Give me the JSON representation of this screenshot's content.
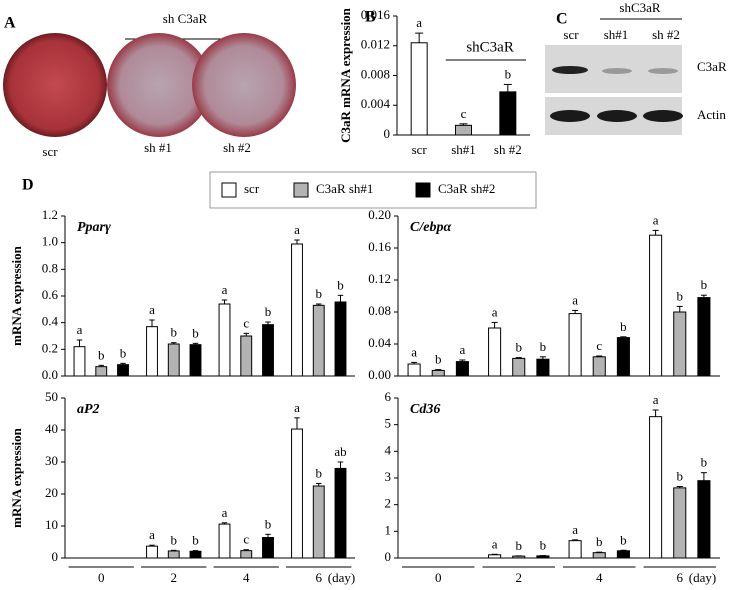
{
  "panel_a": {
    "label": "A",
    "group_label": "sh C3aR",
    "labels": [
      "scr",
      "sh #1",
      "sh #2"
    ]
  },
  "panel_c": {
    "label": "C",
    "group_label": "shC3aR",
    "lanes": [
      "scr",
      "sh#1",
      "sh #2"
    ],
    "bands": [
      "C3aR",
      "Actin"
    ]
  },
  "panel_d": {
    "label": "D",
    "legend": [
      {
        "name": "scr",
        "color": "#ffffff"
      },
      {
        "name": "C3aR sh#1",
        "color": "#b3b3b3"
      },
      {
        "name": "C3aR sh#2",
        "color": "#000000"
      }
    ]
  },
  "chart_data": [
    {
      "type": "bar",
      "panel": "B",
      "ylabel": "C3aR mRNA expression",
      "annotation": "shC3aR",
      "categories": [
        "scr",
        "sh#1",
        "sh #2"
      ],
      "values": [
        0.0124,
        0.0013,
        0.0058
      ],
      "errors": [
        0.0013,
        0.0002,
        0.001
      ],
      "letters": [
        "a",
        "c",
        "b"
      ],
      "colors": [
        "#ffffff",
        "#b3b3b3",
        "#000000"
      ],
      "ylim": [
        0,
        0.016
      ],
      "yticks": [
        0,
        0.004,
        0.008,
        0.012,
        0.016
      ]
    },
    {
      "type": "grouped_bar",
      "title": "Pparγ",
      "ylabel": "mRNA expression",
      "series": [
        {
          "color": "#ffffff",
          "values": [
            0.22,
            0.37,
            0.54,
            0.99
          ],
          "errors": [
            0.05,
            0.05,
            0.03,
            0.03
          ],
          "letters": [
            "a",
            "a",
            "a",
            "a"
          ]
        },
        {
          "color": "#b3b3b3",
          "values": [
            0.07,
            0.24,
            0.3,
            0.53
          ],
          "errors": [
            0.01,
            0.01,
            0.02,
            0.01
          ],
          "letters": [
            "b",
            "b",
            "c",
            "b"
          ]
        },
        {
          "color": "#000000",
          "values": [
            0.085,
            0.235,
            0.385,
            0.555
          ],
          "errors": [
            0.01,
            0.01,
            0.02,
            0.05
          ],
          "letters": [
            "b",
            "b",
            "b",
            "b"
          ]
        }
      ],
      "ylim": [
        0,
        1.2
      ],
      "yticks": [
        {
          "value": 0,
          "label": "0.0"
        },
        0.2,
        0.4,
        0.6,
        0.8,
        {
          "value": 1,
          "label": "1.0"
        },
        1.2
      ]
    },
    {
      "type": "grouped_bar",
      "title": "C/ebpα",
      "series": [
        {
          "color": "#ffffff",
          "values": [
            0.015,
            0.06,
            0.078,
            0.176
          ],
          "errors": [
            0.002,
            0.007,
            0.004,
            0.006
          ],
          "letters": [
            "a",
            "a",
            "a",
            "a"
          ]
        },
        {
          "color": "#b3b3b3",
          "values": [
            0.007,
            0.022,
            0.024,
            0.08
          ],
          "errors": [
            0.001,
            0.001,
            0.001,
            0.007
          ],
          "letters": [
            "b",
            "b",
            "c",
            "b"
          ]
        },
        {
          "color": "#000000",
          "values": [
            0.018,
            0.021,
            0.048,
            0.098
          ],
          "errors": [
            0.002,
            0.003,
            0.001,
            0.003
          ],
          "letters": [
            "a",
            "b",
            "b",
            "b"
          ]
        }
      ],
      "ylim": [
        0,
        0.2
      ],
      "yticks": [
        {
          "value": 0,
          "label": "0.00"
        },
        0.04,
        0.08,
        0.12,
        0.16,
        {
          "value": 0.2,
          "label": "0.20"
        }
      ]
    },
    {
      "type": "grouped_bar",
      "title": "aP2",
      "ylabel": "mRNA expression",
      "categories": [
        "0",
        "2",
        "4",
        "6"
      ],
      "xlabel": "(day)",
      "series": [
        {
          "color": "#ffffff",
          "values": [
            0,
            3.7,
            10.6,
            40.3
          ],
          "errors": [
            0,
            0.3,
            0.4,
            3.5
          ],
          "letters": [
            null,
            "a",
            "a",
            "a"
          ]
        },
        {
          "color": "#b3b3b3",
          "values": [
            0,
            2.2,
            2.3,
            22.5
          ],
          "errors": [
            0,
            0.2,
            0.3,
            0.8
          ],
          "letters": [
            null,
            "b",
            "c",
            "b"
          ]
        },
        {
          "color": "#000000",
          "values": [
            0,
            2.1,
            6.4,
            28
          ],
          "errors": [
            0,
            0.2,
            1,
            2
          ],
          "letters": [
            null,
            "b",
            "b",
            "ab"
          ]
        }
      ],
      "ylim": [
        0,
        50
      ],
      "yticks": [
        0,
        10,
        20,
        30,
        40,
        50
      ]
    },
    {
      "type": "grouped_bar",
      "title": "Cd36",
      "categories": [
        "0",
        "2",
        "4",
        "6"
      ],
      "xlabel": "(day)",
      "series": [
        {
          "color": "#ffffff",
          "values": [
            0,
            0.12,
            0.65,
            5.3
          ],
          "errors": [
            0,
            0.02,
            0.03,
            0.25
          ],
          "letters": [
            null,
            "a",
            "a",
            "a"
          ]
        },
        {
          "color": "#b3b3b3",
          "values": [
            0,
            0.07,
            0.2,
            2.63
          ],
          "errors": [
            0,
            0.01,
            0.02,
            0.05
          ],
          "letters": [
            null,
            "b",
            "b",
            "b"
          ]
        },
        {
          "color": "#000000",
          "values": [
            0,
            0.08,
            0.27,
            2.9
          ],
          "errors": [
            0,
            0.01,
            0.02,
            0.3
          ],
          "letters": [
            null,
            "b",
            "b",
            "b"
          ]
        }
      ],
      "ylim": [
        0,
        6
      ],
      "yticks": [
        0,
        1,
        2,
        3,
        4,
        5,
        6
      ]
    }
  ]
}
